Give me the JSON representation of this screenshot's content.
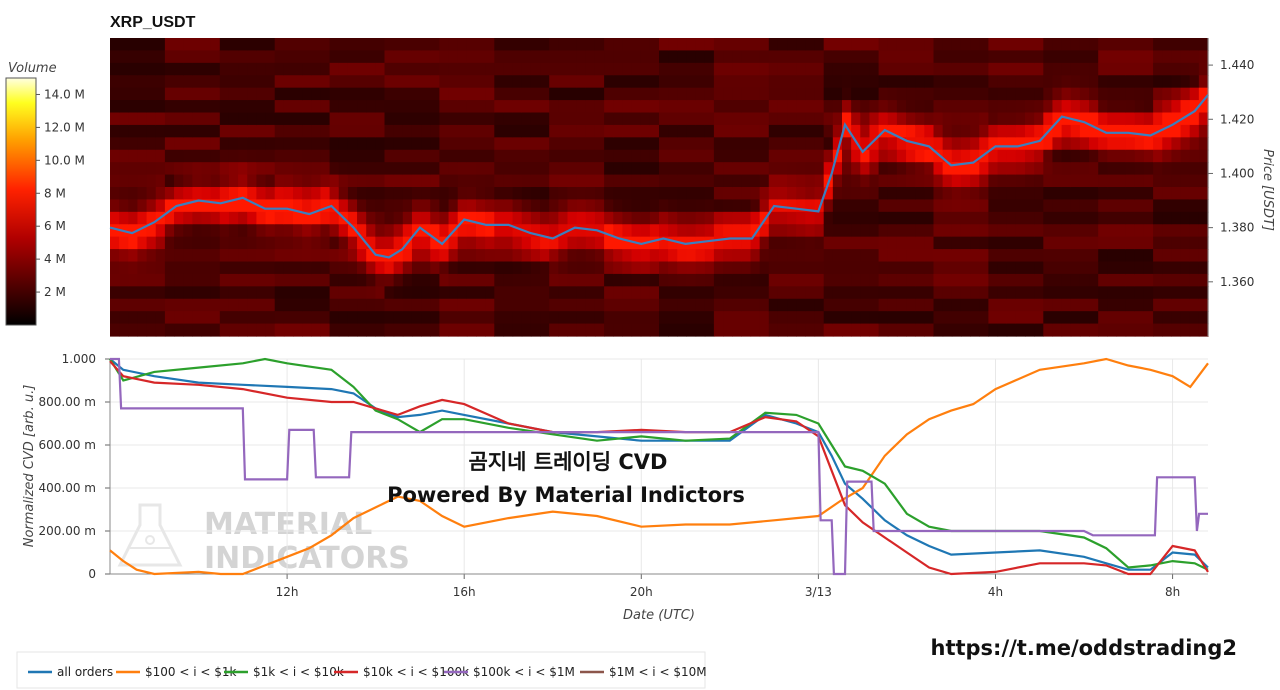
{
  "chart_data": [
    {
      "type": "heatmap",
      "title": "XRP_USDT",
      "ylabel": "Price [USDT]",
      "y_ticks": [
        "1.360",
        "1.380",
        "1.400",
        "1.420",
        "1.440"
      ],
      "ylim": [
        1.34,
        1.45
      ],
      "colorbar": {
        "label": "Volume",
        "ticks": [
          "2 M",
          "4 M",
          "6 M",
          "8 M",
          "10.0 M",
          "12.0 M",
          "14.0 M"
        ],
        "range": [
          0,
          15
        ]
      },
      "price_series": {
        "name": "",
        "color": "#3b7fbf",
        "x_hours": [
          8.0,
          8.5,
          9.0,
          9.5,
          10.0,
          10.5,
          11.0,
          11.5,
          12.0,
          12.5,
          13.0,
          13.5,
          14.0,
          14.3,
          14.6,
          15.0,
          15.5,
          16.0,
          16.5,
          17.0,
          17.5,
          18.0,
          18.5,
          19.0,
          19.5,
          20.0,
          20.5,
          21.0,
          21.5,
          22.0,
          22.5,
          23.0,
          23.5,
          24.0,
          24.3,
          24.6,
          25.0,
          25.5,
          26.0,
          26.5,
          27.0,
          27.5,
          28.0,
          28.5,
          29.0,
          29.5,
          30.0,
          30.5,
          31.0,
          31.5,
          32.0,
          32.5,
          32.8
        ],
        "y": [
          1.38,
          1.378,
          1.382,
          1.388,
          1.39,
          1.389,
          1.391,
          1.387,
          1.387,
          1.385,
          1.388,
          1.38,
          1.37,
          1.369,
          1.372,
          1.38,
          1.374,
          1.383,
          1.381,
          1.381,
          1.378,
          1.376,
          1.38,
          1.379,
          1.376,
          1.374,
          1.376,
          1.374,
          1.375,
          1.376,
          1.376,
          1.388,
          1.387,
          1.386,
          1.4,
          1.418,
          1.408,
          1.416,
          1.412,
          1.41,
          1.403,
          1.404,
          1.41,
          1.41,
          1.412,
          1.421,
          1.419,
          1.415,
          1.415,
          1.414,
          1.418,
          1.423,
          1.429
        ]
      }
    },
    {
      "type": "line",
      "xlabel": "Date (UTC)",
      "ylabel": "Normalized CVD [arb. u.]",
      "x_ticks": [
        "12h",
        "16h",
        "20h",
        "3/13",
        "4h",
        "8h"
      ],
      "x_tick_hours": [
        12,
        16,
        20,
        24,
        28,
        32
      ],
      "xlim_hours": [
        8.0,
        32.8
      ],
      "y_ticks": [
        "0",
        "200.00 m",
        "400.00 m",
        "600.00 m",
        "800.00 m",
        "1.000"
      ],
      "ylim": [
        0,
        1.0
      ],
      "series": [
        {
          "name": "all orders",
          "color": "#1f77b4",
          "x": [
            8.0,
            8.3,
            9.0,
            10.0,
            11.0,
            12.0,
            13.0,
            13.5,
            14.0,
            14.5,
            15.0,
            15.5,
            16.0,
            17.0,
            18.0,
            19.0,
            20.0,
            21.0,
            22.0,
            22.8,
            23.5,
            24.0,
            24.3,
            24.6,
            25.0,
            25.5,
            26.0,
            26.5,
            27.0,
            28.0,
            29.0,
            30.0,
            30.5,
            31.0,
            31.5,
            32.0,
            32.5,
            32.8
          ],
          "y": [
            1.0,
            0.95,
            0.92,
            0.89,
            0.88,
            0.87,
            0.86,
            0.84,
            0.77,
            0.73,
            0.74,
            0.76,
            0.74,
            0.7,
            0.66,
            0.64,
            0.62,
            0.62,
            0.62,
            0.74,
            0.7,
            0.66,
            0.55,
            0.42,
            0.35,
            0.25,
            0.18,
            0.13,
            0.09,
            0.1,
            0.11,
            0.08,
            0.05,
            0.02,
            0.02,
            0.1,
            0.09,
            0.03
          ]
        },
        {
          "name": "$100 < i < $1k",
          "color": "#ff7f0e",
          "x": [
            8.0,
            8.3,
            8.6,
            9.0,
            10.0,
            10.5,
            11.0,
            11.5,
            12.0,
            12.5,
            13.0,
            13.5,
            14.0,
            14.5,
            15.0,
            15.5,
            16.0,
            17.0,
            18.0,
            19.0,
            20.0,
            21.0,
            22.0,
            23.0,
            23.5,
            24.0,
            24.5,
            25.0,
            25.5,
            26.0,
            26.5,
            27.0,
            27.5,
            28.0,
            29.0,
            30.0,
            30.5,
            31.0,
            31.5,
            32.0,
            32.4,
            32.8
          ],
          "y": [
            0.11,
            0.06,
            0.02,
            0.0,
            0.01,
            0.0,
            0.0,
            0.04,
            0.08,
            0.12,
            0.18,
            0.26,
            0.31,
            0.36,
            0.34,
            0.27,
            0.22,
            0.26,
            0.29,
            0.27,
            0.22,
            0.23,
            0.23,
            0.25,
            0.26,
            0.27,
            0.34,
            0.4,
            0.55,
            0.65,
            0.72,
            0.76,
            0.79,
            0.86,
            0.95,
            0.98,
            1.0,
            0.97,
            0.95,
            0.92,
            0.87,
            0.98
          ]
        },
        {
          "name": "$1k < i < $10k",
          "color": "#2ca02c",
          "x": [
            8.0,
            8.3,
            9.0,
            10.0,
            11.0,
            11.5,
            12.0,
            13.0,
            13.5,
            14.0,
            14.5,
            15.0,
            15.5,
            16.0,
            17.0,
            18.0,
            19.0,
            20.0,
            21.0,
            22.0,
            22.8,
            23.5,
            24.0,
            24.3,
            24.6,
            25.0,
            25.5,
            26.0,
            26.5,
            27.0,
            28.0,
            29.0,
            30.0,
            30.5,
            31.0,
            31.5,
            32.0,
            32.5,
            32.8
          ],
          "y": [
            1.0,
            0.9,
            0.94,
            0.96,
            0.98,
            1.0,
            0.98,
            0.95,
            0.87,
            0.76,
            0.72,
            0.66,
            0.72,
            0.72,
            0.68,
            0.65,
            0.62,
            0.64,
            0.62,
            0.63,
            0.75,
            0.74,
            0.7,
            0.6,
            0.5,
            0.48,
            0.42,
            0.28,
            0.22,
            0.2,
            0.2,
            0.2,
            0.17,
            0.12,
            0.03,
            0.04,
            0.06,
            0.05,
            0.02
          ]
        },
        {
          "name": "$10k < i < $100k",
          "color": "#d62728",
          "x": [
            8.0,
            8.3,
            9.0,
            10.0,
            11.0,
            12.0,
            13.0,
            13.5,
            14.0,
            14.5,
            15.0,
            15.5,
            16.0,
            17.0,
            18.0,
            19.0,
            20.0,
            21.0,
            22.0,
            22.8,
            23.5,
            24.0,
            24.3,
            24.6,
            25.0,
            25.5,
            26.0,
            26.5,
            27.0,
            28.0,
            29.0,
            30.0,
            30.5,
            31.0,
            31.5,
            32.0,
            32.5,
            32.8
          ],
          "y": [
            0.99,
            0.92,
            0.89,
            0.88,
            0.86,
            0.82,
            0.8,
            0.8,
            0.77,
            0.74,
            0.78,
            0.81,
            0.79,
            0.7,
            0.66,
            0.66,
            0.67,
            0.66,
            0.66,
            0.73,
            0.71,
            0.64,
            0.48,
            0.32,
            0.24,
            0.17,
            0.1,
            0.03,
            0.0,
            0.01,
            0.05,
            0.05,
            0.04,
            0.0,
            0.0,
            0.13,
            0.11,
            0.01
          ]
        },
        {
          "name": "$100k < i < $1M",
          "color": "#9467bd",
          "x": [
            8.0,
            8.2,
            8.25,
            11.0,
            11.05,
            12.0,
            12.05,
            12.6,
            12.65,
            13.4,
            13.45,
            24.0,
            24.05,
            24.3,
            24.35,
            24.6,
            24.65,
            25.2,
            25.25,
            26.0,
            30.0,
            30.2,
            31.6,
            31.65,
            32.5,
            32.55,
            32.6,
            32.8
          ],
          "y": [
            1.0,
            1.0,
            0.77,
            0.77,
            0.44,
            0.44,
            0.67,
            0.67,
            0.45,
            0.45,
            0.66,
            0.66,
            0.25,
            0.25,
            0.0,
            0.0,
            0.43,
            0.43,
            0.2,
            0.2,
            0.2,
            0.18,
            0.18,
            0.45,
            0.45,
            0.2,
            0.28,
            0.28
          ]
        },
        {
          "name": "$1M < i < $10M",
          "color": "#8c564b",
          "x": [],
          "y": []
        }
      ]
    }
  ],
  "overlay": {
    "line1": "곰지네 트레이딩 CVD",
    "line2": "Powered By Material Indictors"
  },
  "watermark": {
    "line1": "MATERIAL",
    "line2": "INDICATORS",
    "icon": "flask-icon"
  },
  "link": "https://t.me/oddstrading2"
}
